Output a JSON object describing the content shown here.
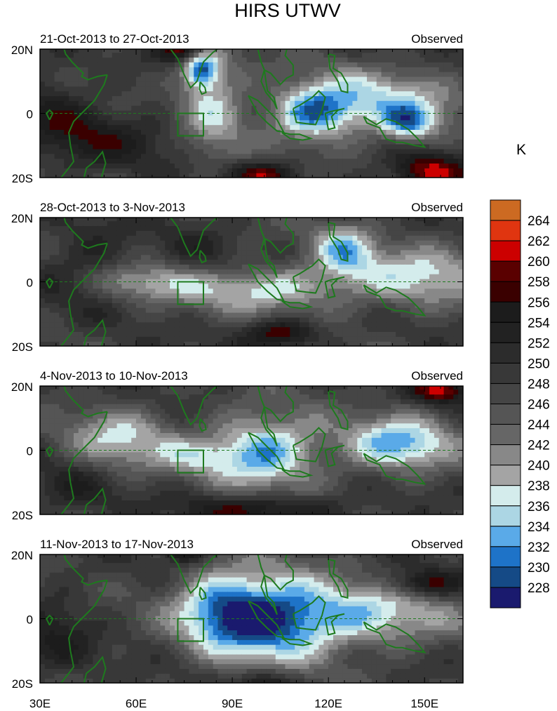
{
  "chart_data": {
    "type": "heatmap",
    "title": "HIRS UTWV",
    "units_label": "K",
    "x_ticks": [
      {
        "v": 30,
        "label": "30E"
      },
      {
        "v": 60,
        "label": "60E"
      },
      {
        "v": 90,
        "label": "90E"
      },
      {
        "v": 120,
        "label": "120E"
      },
      {
        "v": 150,
        "label": "150E"
      }
    ],
    "y_ticks": [
      {
        "v": 20,
        "label": "20N"
      },
      {
        "v": 0,
        "label": "0"
      },
      {
        "v": -20,
        "label": "20S"
      }
    ],
    "xlim": [
      30,
      162
    ],
    "ylim": [
      -20,
      20
    ],
    "levels": [
      228,
      230,
      232,
      234,
      236,
      238,
      240,
      242,
      244,
      246,
      248,
      250,
      252,
      254,
      256,
      258,
      260,
      262,
      264
    ],
    "level_labels": [
      "228",
      "230",
      "232",
      "234",
      "236",
      "238",
      "240",
      "242",
      "244",
      "246",
      "248",
      "250",
      "252",
      "254",
      "256",
      "258",
      "260",
      "262",
      "264"
    ],
    "colors": [
      "#1a1a6e",
      "#154a86",
      "#1e73c8",
      "#5aaae8",
      "#acd6e4",
      "#d4ecec",
      "#a4a4a4",
      "#888888",
      "#666666",
      "#555555",
      "#454545",
      "#383838",
      "#2c2c2c",
      "#222222",
      "#1c1c1c",
      "#3a0000",
      "#5a0000",
      "#cc0000",
      "#e03510",
      "#cc6a22"
    ],
    "coast_color": "#1e7a1e",
    "region_box": {
      "lon": [
        73,
        81
      ],
      "lat": [
        -7,
        0
      ]
    },
    "panels": [
      {
        "period": "21-Oct-2013 to 27-Oct-2013",
        "label": "Observed",
        "base": 248,
        "blobs": [
          [
            40,
            -5,
            6,
            10,
            8
          ],
          [
            32,
            8,
            3,
            6,
            8
          ],
          [
            80,
            14,
            -16,
            4,
            4
          ],
          [
            84,
            3,
            -10,
            7,
            12
          ],
          [
            115,
            0,
            -14,
            9,
            6
          ],
          [
            135,
            4,
            -11,
            18,
            7
          ],
          [
            145,
            -3,
            -12,
            6,
            4
          ],
          [
            75,
            20,
            12,
            5,
            3
          ],
          [
            100,
            -19,
            11,
            8,
            3
          ],
          [
            152,
            -18,
            12,
            8,
            4
          ],
          [
            60,
            -8,
            4,
            12,
            6
          ]
        ]
      },
      {
        "period": "28-Oct-2013 to 3-Nov-2013",
        "label": "Observed",
        "base": 248,
        "blobs": [
          [
            60,
            0,
            -8,
            12,
            4
          ],
          [
            100,
            -2,
            -11,
            20,
            5
          ],
          [
            125,
            10,
            -12,
            7,
            6
          ],
          [
            150,
            2,
            -10,
            15,
            7
          ],
          [
            105,
            -16,
            11,
            8,
            3
          ],
          [
            45,
            5,
            5,
            10,
            10
          ],
          [
            80,
            10,
            3,
            8,
            6
          ]
        ]
      },
      {
        "period": "4-Nov-2013 to 10-Nov-2013",
        "label": "Observed",
        "base": 248,
        "blobs": [
          [
            55,
            3,
            -10,
            12,
            7
          ],
          [
            100,
            0,
            -16,
            12,
            8
          ],
          [
            142,
            2,
            -15,
            12,
            6
          ],
          [
            78,
            -2,
            -6,
            8,
            4
          ],
          [
            100,
            -18,
            9,
            18,
            3
          ],
          [
            155,
            19,
            12,
            6,
            3
          ],
          [
            40,
            -12,
            5,
            10,
            6
          ]
        ]
      },
      {
        "period": "11-Nov-2013 to 17-Nov-2013",
        "label": "Observed",
        "base": 248,
        "blobs": [
          [
            100,
            0,
            -17,
            14,
            10
          ],
          [
            85,
            4,
            -10,
            10,
            8
          ],
          [
            130,
            1,
            -12,
            20,
            7
          ],
          [
            100,
            -20,
            10,
            6,
            3
          ],
          [
            150,
            11,
            10,
            8,
            3
          ],
          [
            35,
            -5,
            5,
            8,
            10
          ],
          [
            75,
            20,
            9,
            4,
            2
          ]
        ]
      }
    ]
  }
}
